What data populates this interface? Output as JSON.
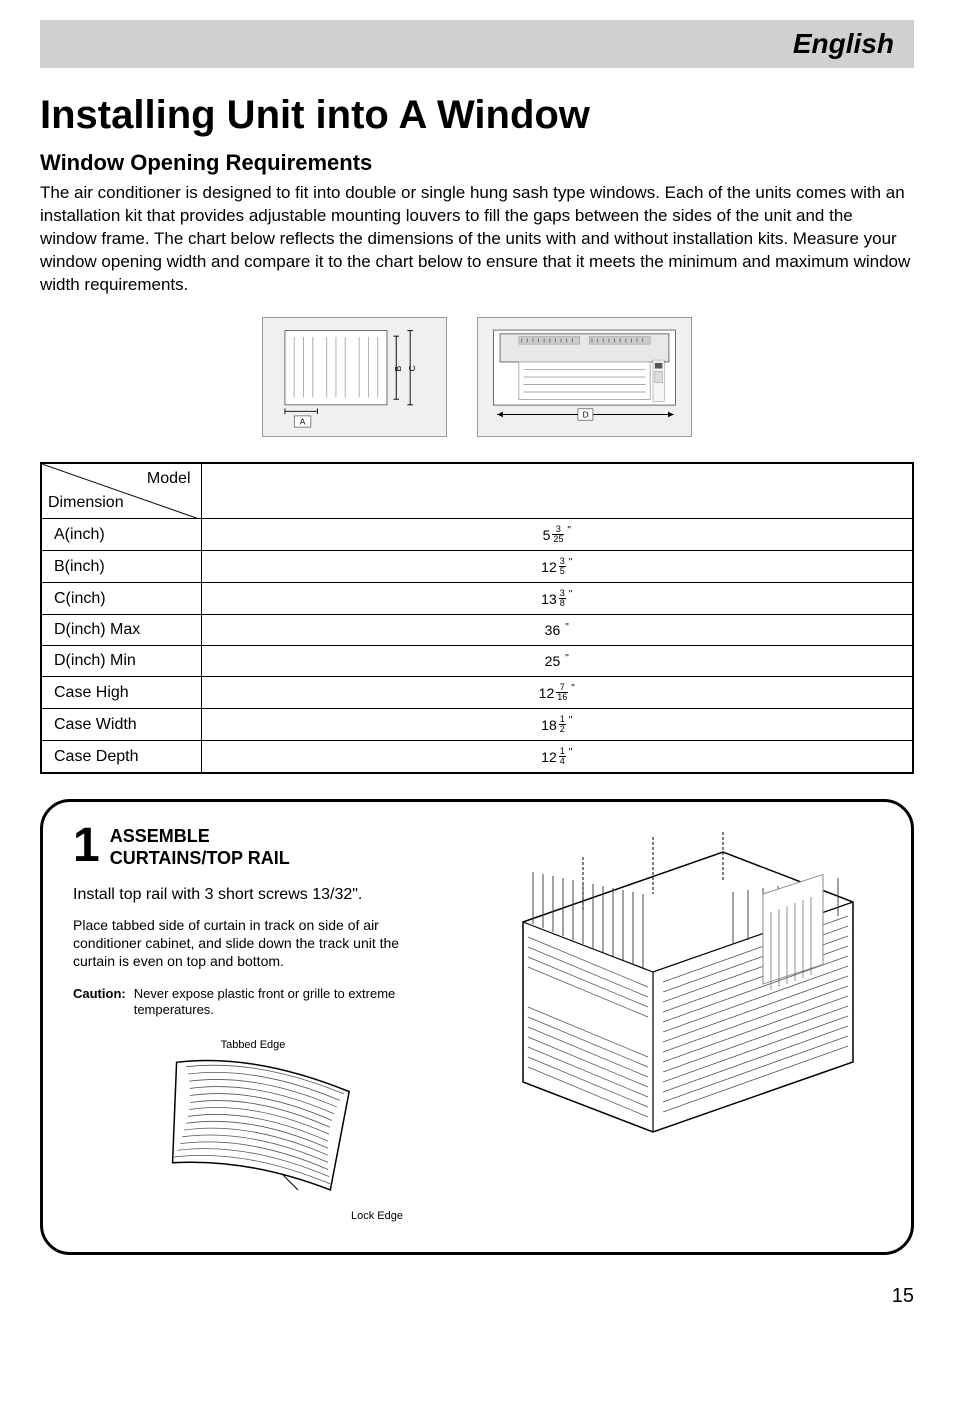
{
  "header": {
    "language": "English"
  },
  "title": "Installing Unit into A Window",
  "subtitle": "Window Opening Requirements",
  "intro_text": "The air conditioner is designed to fit into double or single hung sash type windows. Each of the units comes with an installation kit that provides adjustable mounting louvers  to fill the gaps between the sides of the unit  and the window frame. The chart below reflects the dimensions of the units with  and without installation kits.  Measure your window opening width and compare it to the chart below to ensure that it meets the minimum and maximum window width requirements.",
  "diagram_labels": {
    "a": "A",
    "b": "B",
    "c": "C",
    "d": "D"
  },
  "dims_table": {
    "header_model": "Model",
    "header_dimension": "Dimension",
    "rows": [
      {
        "label": "A(inch)",
        "whole": "5",
        "num": "3",
        "den": "25"
      },
      {
        "label": "B(inch)",
        "whole": "12",
        "num": "3",
        "den": "5"
      },
      {
        "label": "C(inch)",
        "whole": "13",
        "num": "3",
        "den": "8"
      },
      {
        "label": "D(inch) Max",
        "whole": "36",
        "num": "",
        "den": ""
      },
      {
        "label": "D(inch) Min",
        "whole": "25",
        "num": "",
        "den": ""
      },
      {
        "label": "Case High",
        "whole": "12",
        "num": "7",
        "den": "16"
      },
      {
        "label": "Case Width",
        "whole": "18",
        "num": "1",
        "den": "2"
      },
      {
        "label": "Case Depth",
        "whole": "12",
        "num": "1",
        "den": "4"
      }
    ]
  },
  "assembly": {
    "step_number": "1",
    "step_title_line1": "ASSEMBLE",
    "step_title_line2": "CURTAINS/TOP RAIL",
    "text1": "Install top rail with 3 short screws 13/32\".",
    "text2": "Place tabbed side of curtain in track on side of air conditioner cabinet, and slide down the track unit the curtain is even on top and bottom.",
    "caution_label": "Caution:",
    "caution_text": "Never expose plastic front or grille to extreme  temperatures.",
    "tabbed_edge": "Tabbed Edge",
    "lock_edge": "Lock Edge"
  },
  "page_number": "15",
  "colors": {
    "banner_bg": "#d0d0d0",
    "text": "#000000",
    "border": "#000000",
    "diagram_bg": "#f0f0f0",
    "diagram_border": "#999999"
  }
}
